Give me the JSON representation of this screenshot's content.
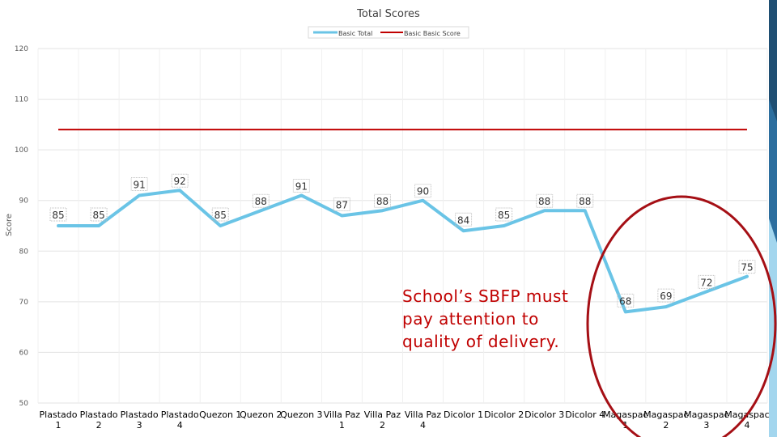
{
  "chart_data": {
    "type": "line",
    "title": "Total Scores",
    "ylabel": "Score",
    "xlabel": "",
    "ylim": [
      50,
      120
    ],
    "yticks": [
      50,
      60,
      70,
      80,
      90,
      100,
      110,
      120
    ],
    "grid": true,
    "legend_position": "top-center",
    "categories": [
      [
        "Plastado",
        "1"
      ],
      [
        "Plastado",
        "2"
      ],
      [
        "Plastado",
        "3"
      ],
      [
        "Plastado",
        "4"
      ],
      [
        "Quezon 1"
      ],
      [
        "Quezon 2"
      ],
      [
        "Quezon 3"
      ],
      [
        "Villa Paz",
        "1"
      ],
      [
        "Villa Paz",
        "2"
      ],
      [
        "Villa Paz",
        "4"
      ],
      [
        "Dicolor 1"
      ],
      [
        "Dicolor 2"
      ],
      [
        "Dicolor 3"
      ],
      [
        "Dicolor 4"
      ],
      [
        "Magaspac",
        "1"
      ],
      [
        "Magaspac",
        "2"
      ],
      [
        "Magaspac",
        "3"
      ],
      [
        "Magaspac",
        "4"
      ]
    ],
    "series": [
      {
        "name": "Basic Total",
        "color": "#6ac4e6",
        "values": [
          85,
          85,
          91,
          92,
          85,
          88,
          91,
          87,
          88,
          90,
          84,
          85,
          88,
          88,
          68,
          69,
          72,
          75
        ],
        "data_labels": [
          "85",
          "85",
          "91",
          "92",
          "85",
          "88",
          "91",
          "87",
          "88",
          "90",
          "84",
          "85",
          "88",
          "88",
          "68",
          "69",
          "72",
          "75"
        ]
      },
      {
        "name": "Basic Basic Score",
        "color": "#c00000",
        "values": [
          104,
          104,
          104,
          104,
          104,
          104,
          104,
          104,
          104,
          104,
          104,
          104,
          104,
          104,
          104,
          104,
          104,
          104
        ]
      }
    ],
    "annotation": {
      "lines": [
        "School’s SBFP must",
        "pay attention to",
        "quality of delivery."
      ],
      "color": "#c00000"
    },
    "highlight_color": "#a50f15"
  }
}
